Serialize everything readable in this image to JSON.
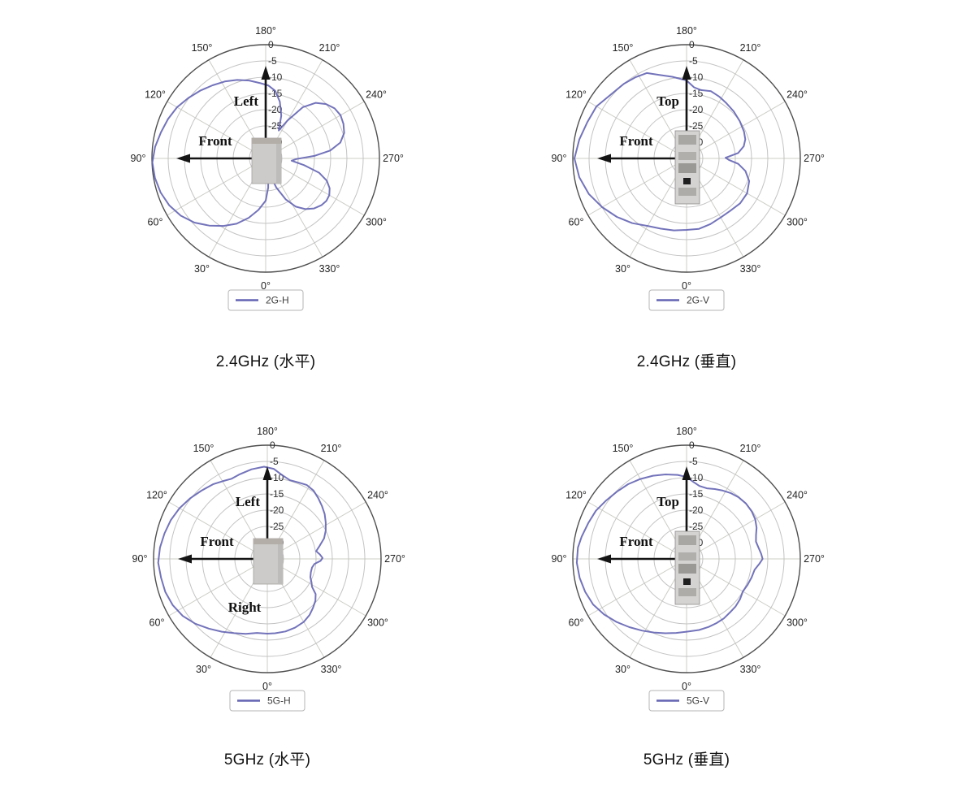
{
  "colors": {
    "curve": "#6464b4",
    "outer_ring": "#4f4f4f",
    "ring": "#c3c3c3",
    "spoke": "#ccccc6",
    "angle_label": "#1f1f1f",
    "r_label": "#2e2e2e",
    "arrow": "#141414",
    "annotation": "#111111",
    "legend_border": "#b5b5b5",
    "legend_text": "#3d3d3d",
    "caption_text": "#111111"
  },
  "chart_data": [
    {
      "type": "line",
      "polar": true,
      "id": "2g-h",
      "caption": "2.4GHz (水平)",
      "legend": {
        "label": "2G-H"
      },
      "orientation": {
        "zero_deg": "bottom",
        "direction": "counterclockwise"
      },
      "angle_ticks_deg": [
        0,
        30,
        60,
        90,
        120,
        150,
        180,
        210,
        240,
        270,
        300,
        330
      ],
      "angle_tick_labels": [
        "0°",
        "30°",
        "60°",
        "90°",
        "120°",
        "150°",
        "180°",
        "210°",
        "240°",
        "270°",
        "300°",
        "330°"
      ],
      "r_tick_values": [
        0,
        -5,
        -10,
        -15,
        -20,
        -25,
        -30
      ],
      "r_tick_labels": [
        "0",
        "-5",
        "-10",
        "-15",
        "-20",
        "-25",
        "-30"
      ],
      "r_range": [
        -35,
        0
      ],
      "grid": true,
      "legend_position": "bottom-center",
      "device": "front-view",
      "annotations": [
        {
          "text": "Left",
          "arrow": "up",
          "placement": "left-of-up-arrow"
        },
        {
          "text": "Front",
          "arrow": "left",
          "placement": "above-left-arrow"
        }
      ],
      "series": [
        {
          "name": "2G-H",
          "points": [
            [
              0,
              -22
            ],
            [
              8,
              -19
            ],
            [
              16,
              -16
            ],
            [
              24,
              -13
            ],
            [
              32,
              -10.5
            ],
            [
              40,
              -8
            ],
            [
              48,
              -5.5
            ],
            [
              56,
              -3.5
            ],
            [
              64,
              -2
            ],
            [
              72,
              -1
            ],
            [
              80,
              -0.4
            ],
            [
              88,
              -0.1
            ],
            [
              96,
              -0.8
            ],
            [
              104,
              -1.8
            ],
            [
              112,
              -2.6
            ],
            [
              120,
              -3.5
            ],
            [
              128,
              -4.8
            ],
            [
              136,
              -6
            ],
            [
              144,
              -7.2
            ],
            [
              152,
              -8.2
            ],
            [
              160,
              -9.3
            ],
            [
              168,
              -10.5
            ],
            [
              176,
              -11.8
            ],
            [
              182,
              -12.5
            ],
            [
              188,
              -14
            ],
            [
              194,
              -17
            ],
            [
              200,
              -21
            ],
            [
              205,
              -25.5
            ],
            [
              210,
              -21.5
            ],
            [
              216,
              -15.5
            ],
            [
              222,
              -12
            ],
            [
              228,
              -10
            ],
            [
              234,
              -8.8
            ],
            [
              240,
              -8.4
            ],
            [
              246,
              -8.8
            ],
            [
              252,
              -9.6
            ],
            [
              258,
              -11.5
            ],
            [
              263,
              -15
            ],
            [
              267,
              -20
            ],
            [
              271,
              -25.5
            ],
            [
              275,
              -27
            ],
            [
              280,
              -23
            ],
            [
              285,
              -18
            ],
            [
              290,
              -15
            ],
            [
              295,
              -13.3
            ],
            [
              300,
              -12.4
            ],
            [
              305,
              -12.2
            ],
            [
              310,
              -12.6
            ],
            [
              316,
              -13.6
            ],
            [
              322,
              -15.2
            ],
            [
              328,
              -17.5
            ],
            [
              334,
              -21
            ],
            [
              340,
              -25.5
            ],
            [
              345,
              -29.5
            ],
            [
              350,
              -30.5
            ],
            [
              355,
              -26
            ]
          ]
        }
      ]
    },
    {
      "type": "line",
      "polar": true,
      "id": "2g-v",
      "caption": "2.4GHz (垂直)",
      "legend": {
        "label": "2G-V"
      },
      "orientation": {
        "zero_deg": "bottom",
        "direction": "counterclockwise"
      },
      "angle_ticks_deg": [
        0,
        30,
        60,
        90,
        120,
        150,
        180,
        210,
        240,
        270,
        300,
        330
      ],
      "angle_tick_labels": [
        "0°",
        "30°",
        "60°",
        "90°",
        "120°",
        "150°",
        "180°",
        "210°",
        "240°",
        "270°",
        "300°",
        "330°"
      ],
      "r_tick_values": [
        0,
        -5,
        -10,
        -15,
        -20,
        -25,
        -30
      ],
      "r_tick_labels": [
        "0",
        "-5",
        "-10",
        "-15",
        "-20",
        "-25",
        "-30"
      ],
      "r_range": [
        -35,
        0
      ],
      "grid": true,
      "legend_position": "bottom-center",
      "device": "side-view",
      "annotations": [
        {
          "text": "Top",
          "arrow": "up",
          "placement": "left-of-up-arrow"
        },
        {
          "text": "Front",
          "arrow": "left",
          "placement": "above-left-arrow"
        }
      ],
      "series": [
        {
          "name": "2G-V",
          "points": [
            [
              0,
              -13
            ],
            [
              10,
              -12.5
            ],
            [
              20,
              -12
            ],
            [
              30,
              -11
            ],
            [
              40,
              -9
            ],
            [
              50,
              -7
            ],
            [
              60,
              -5
            ],
            [
              70,
              -3
            ],
            [
              80,
              -1.5
            ],
            [
              90,
              -0.5
            ],
            [
              100,
              -1.5
            ],
            [
              110,
              -2.5
            ],
            [
              120,
              -3
            ],
            [
              130,
              -4.5
            ],
            [
              140,
              -5
            ],
            [
              148,
              -5.5
            ],
            [
              155,
              -6
            ],
            [
              162,
              -8
            ],
            [
              170,
              -9.5
            ],
            [
              180,
              -11
            ],
            [
              186,
              -13
            ],
            [
              192,
              -13.5
            ],
            [
              200,
              -13
            ],
            [
              208,
              -13.5
            ],
            [
              215,
              -14
            ],
            [
              225,
              -14.5
            ],
            [
              235,
              -15
            ],
            [
              245,
              -15.5
            ],
            [
              252,
              -16
            ],
            [
              258,
              -17
            ],
            [
              264,
              -19
            ],
            [
              269,
              -23
            ],
            [
              272,
              -22
            ],
            [
              276,
              -19
            ],
            [
              282,
              -16.5
            ],
            [
              290,
              -14.5
            ],
            [
              300,
              -13.5
            ],
            [
              310,
              -13.5
            ],
            [
              320,
              -14
            ],
            [
              330,
              -14
            ],
            [
              340,
              -13.5
            ],
            [
              350,
              -13
            ]
          ]
        }
      ]
    },
    {
      "type": "line",
      "polar": true,
      "id": "5g-h",
      "caption": "5GHz (水平)",
      "legend": {
        "label": "5G-H"
      },
      "orientation": {
        "zero_deg": "bottom",
        "direction": "counterclockwise"
      },
      "angle_ticks_deg": [
        0,
        30,
        60,
        90,
        120,
        150,
        180,
        210,
        240,
        270,
        300,
        330
      ],
      "angle_tick_labels": [
        "0°",
        "30°",
        "60°",
        "90°",
        "120°",
        "150°",
        "180°",
        "210°",
        "240°",
        "270°",
        "300°",
        "330°"
      ],
      "r_tick_values": [
        0,
        -5,
        -10,
        -15,
        -20,
        -25,
        -30
      ],
      "r_tick_labels": [
        "0",
        "-5",
        "-10",
        "-15",
        "-20",
        "-25",
        "-30"
      ],
      "r_range": [
        -35,
        0
      ],
      "grid": true,
      "legend_position": "bottom-center",
      "device": "front-view",
      "annotations": [
        {
          "text": "Left",
          "arrow": "up",
          "placement": "left-of-up-arrow"
        },
        {
          "text": "Front",
          "arrow": "left",
          "placement": "above-left-arrow"
        },
        {
          "text": "Right",
          "arrow": null,
          "placement": "below-center"
        }
      ],
      "series": [
        {
          "name": "5G-H",
          "points": [
            [
              0,
              -12
            ],
            [
              8,
              -12
            ],
            [
              16,
              -11
            ],
            [
              24,
              -10
            ],
            [
              32,
              -8.6
            ],
            [
              40,
              -7
            ],
            [
              48,
              -5.2
            ],
            [
              56,
              -3.6
            ],
            [
              64,
              -2.6
            ],
            [
              72,
              -2
            ],
            [
              80,
              -1.8
            ],
            [
              88,
              -1.4
            ],
            [
              96,
              -1.8
            ],
            [
              104,
              -2.4
            ],
            [
              112,
              -3
            ],
            [
              120,
              -3.8
            ],
            [
              128,
              -4.8
            ],
            [
              136,
              -5.8
            ],
            [
              144,
              -6.6
            ],
            [
              150,
              -7.4
            ],
            [
              156,
              -8
            ],
            [
              162,
              -7.6
            ],
            [
              170,
              -7
            ],
            [
              178,
              -6.6
            ],
            [
              184,
              -7.2
            ],
            [
              190,
              -8.8
            ],
            [
              196,
              -9.8
            ],
            [
              202,
              -9.6
            ],
            [
              208,
              -9.2
            ],
            [
              214,
              -9.6
            ],
            [
              220,
              -10.6
            ],
            [
              226,
              -11.6
            ],
            [
              232,
              -12.6
            ],
            [
              238,
              -13.8
            ],
            [
              244,
              -15
            ],
            [
              250,
              -16.4
            ],
            [
              256,
              -18.4
            ],
            [
              261,
              -19.8
            ],
            [
              265,
              -18.8
            ],
            [
              269,
              -18
            ],
            [
              272,
              -18.6
            ],
            [
              276,
              -20.4
            ],
            [
              281,
              -21
            ],
            [
              287,
              -21
            ],
            [
              293,
              -20.6
            ],
            [
              298,
              -19.6
            ],
            [
              302,
              -18.8
            ],
            [
              306,
              -16.6
            ],
            [
              311,
              -15.4
            ],
            [
              317,
              -14.4
            ],
            [
              323,
              -13.4
            ],
            [
              330,
              -12.6
            ],
            [
              338,
              -12.2
            ],
            [
              346,
              -12
            ],
            [
              354,
              -12
            ]
          ]
        }
      ]
    },
    {
      "type": "line",
      "polar": true,
      "id": "5g-v",
      "caption": "5GHz (垂直)",
      "legend": {
        "label": "5G-V"
      },
      "orientation": {
        "zero_deg": "bottom",
        "direction": "counterclockwise"
      },
      "angle_ticks_deg": [
        0,
        30,
        60,
        90,
        120,
        150,
        180,
        210,
        240,
        270,
        300,
        330
      ],
      "angle_tick_labels": [
        "0°",
        "30°",
        "60°",
        "90°",
        "120°",
        "150°",
        "180°",
        "210°",
        "240°",
        "270°",
        "300°",
        "330°"
      ],
      "r_tick_values": [
        0,
        -5,
        -10,
        -15,
        -20,
        -25,
        -30
      ],
      "r_tick_labels": [
        "0",
        "-5",
        "-10",
        "-15",
        "-20",
        "-25",
        "-30"
      ],
      "r_range": [
        -35,
        0
      ],
      "grid": true,
      "legend_position": "bottom-center",
      "device": "side-view",
      "annotations": [
        {
          "text": "Top",
          "arrow": "up",
          "placement": "left-of-up-arrow"
        },
        {
          "text": "Front",
          "arrow": "left",
          "placement": "above-left-arrow"
        }
      ],
      "series": [
        {
          "name": "5G-V",
          "points": [
            [
              0,
              -12.6
            ],
            [
              8,
              -12
            ],
            [
              16,
              -11.2
            ],
            [
              24,
              -10.2
            ],
            [
              32,
              -9
            ],
            [
              40,
              -7.6
            ],
            [
              48,
              -6
            ],
            [
              56,
              -4.4
            ],
            [
              64,
              -3
            ],
            [
              72,
              -2.2
            ],
            [
              80,
              -1.6
            ],
            [
              88,
              -1.2
            ],
            [
              96,
              -1.4
            ],
            [
              102,
              -2
            ],
            [
              110,
              -2.8
            ],
            [
              118,
              -3.4
            ],
            [
              126,
              -4.4
            ],
            [
              134,
              -5.2
            ],
            [
              142,
              -5.8
            ],
            [
              150,
              -6.6
            ],
            [
              158,
              -7.4
            ],
            [
              166,
              -8.2
            ],
            [
              174,
              -9
            ],
            [
              180,
              -9.8
            ],
            [
              185,
              -11.2
            ],
            [
              190,
              -12.2
            ],
            [
              196,
              -12.4
            ],
            [
              202,
              -11.8
            ],
            [
              208,
              -11.2
            ],
            [
              214,
              -10.6
            ],
            [
              220,
              -10.2
            ],
            [
              227,
              -10
            ],
            [
              234,
              -10.2
            ],
            [
              240,
              -10.6
            ],
            [
              246,
              -11.4
            ],
            [
              251,
              -12.4
            ],
            [
              256,
              -13
            ],
            [
              261,
              -12.6
            ],
            [
              266,
              -12
            ],
            [
              270,
              -11.6
            ],
            [
              274,
              -12.6
            ],
            [
              279,
              -13.8
            ],
            [
              286,
              -14.2
            ],
            [
              293,
              -14.6
            ],
            [
              300,
              -15
            ],
            [
              307,
              -14.4
            ],
            [
              314,
              -14
            ],
            [
              321,
              -13.8
            ],
            [
              328,
              -13.4
            ],
            [
              335,
              -13.2
            ],
            [
              342,
              -13
            ],
            [
              350,
              -12.8
            ]
          ]
        }
      ]
    }
  ]
}
